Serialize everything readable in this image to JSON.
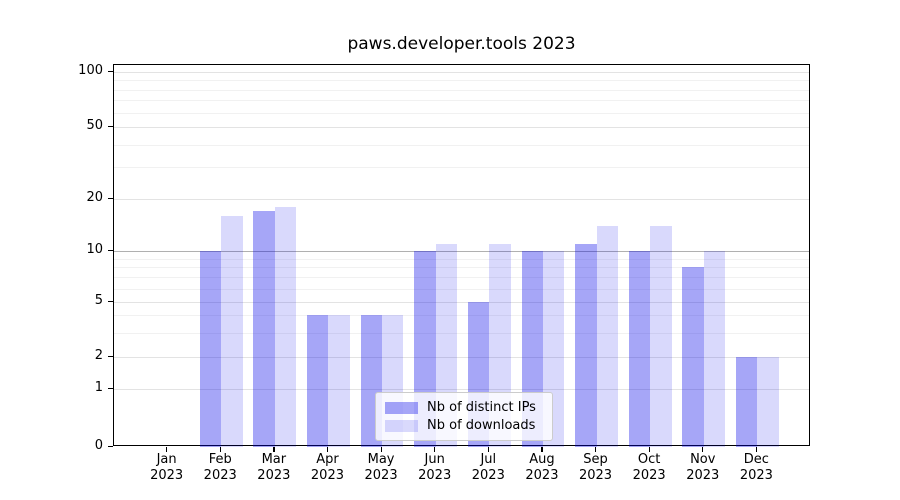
{
  "title": "paws.developer.tools 2023",
  "chart_data": {
    "type": "bar",
    "title": "paws.developer.tools 2023",
    "categories": [
      "Jan 2023",
      "Feb 2023",
      "Mar 2023",
      "Apr 2023",
      "May 2023",
      "Jun 2023",
      "Jul 2023",
      "Aug 2023",
      "Sep 2023",
      "Oct 2023",
      "Nov 2023",
      "Dec 2023"
    ],
    "series": [
      {
        "name": "Nb of distinct IPs",
        "color": "rgba(0,0,232,0.35)",
        "values": [
          0,
          10,
          17,
          4,
          4,
          10,
          5,
          10,
          11,
          10,
          8,
          2
        ]
      },
      {
        "name": "Nb of downloads",
        "color": "rgba(0,0,232,0.15)",
        "values": [
          0,
          16,
          18,
          4,
          4,
          11,
          11,
          10,
          14,
          14,
          10,
          2
        ]
      }
    ],
    "xlabel": "",
    "ylabel": "",
    "ylim": [
      0,
      100
    ],
    "y_axis": {
      "scale": "log-like with 0 baseline",
      "major_ticks": [
        0,
        1,
        2,
        5,
        10,
        20,
        50,
        100
      ],
      "minor_gridlines": [
        3,
        4,
        6,
        7,
        8,
        9,
        30,
        40,
        60,
        70,
        80,
        90
      ]
    },
    "grid": true,
    "legend_position": "lower center",
    "legend_entries": [
      "Nb of distinct IPs",
      "Nb of downloads"
    ]
  },
  "colors": {
    "bar_distinct_ips_on_white": "#a6a6f7",
    "bar_downloads_on_white": "#d9d9fb",
    "gridline_major": "#e3e3e3",
    "gridline_minor": "#f1f1f1",
    "gridline_at_10": "#b0b0b0",
    "axis": "#000000",
    "legend_border": "#cccccc",
    "background": "#ffffff"
  }
}
